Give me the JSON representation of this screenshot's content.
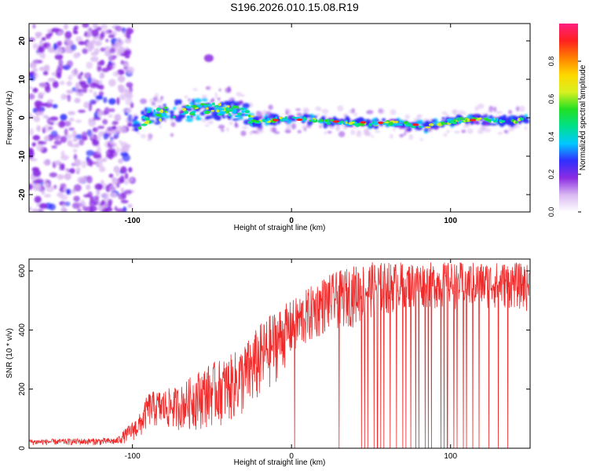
{
  "title": "S196.2026.010.15.08.R19",
  "chart_data": [
    {
      "type": "heatmap",
      "xlabel": "Height of straight line (km)",
      "ylabel": "Frequency (Hz)",
      "xlim": [
        -165,
        150
      ],
      "ylim": [
        -24.5,
        24.5
      ],
      "xticks": [
        -100,
        0,
        100
      ],
      "yticks": [
        -20,
        -10,
        0,
        10,
        20
      ],
      "colorbar": {
        "label": "Normalized spectral amplitude",
        "range": [
          0,
          1
        ],
        "ticks": [
          "0.0",
          "0.2",
          "0.4",
          "0.6",
          "0.8"
        ],
        "tick_values": [
          0,
          0.2,
          0.4,
          0.6,
          0.8
        ],
        "colors": [
          "#ffffff",
          "#d9b8f2",
          "#8a2be2",
          "#3030ff",
          "#00c8ff",
          "#00e08a",
          "#22e022",
          "#d8f020",
          "#ffd800",
          "#ff8000",
          "#ff2020",
          "#ff2080"
        ]
      },
      "ridge": {
        "x": [
          -100,
          -95,
          -90,
          -85,
          -80,
          -75,
          -70,
          -65,
          -60,
          -55,
          -50,
          -45,
          -40,
          -35,
          -30,
          -25,
          -20,
          -10,
          0,
          10,
          20,
          30,
          40,
          50,
          60,
          70,
          75,
          80,
          85,
          90,
          100,
          110,
          120,
          130,
          140,
          148
        ],
        "freq": [
          -3,
          -1,
          0,
          0.5,
          1,
          1.5,
          2,
          1.5,
          2,
          2.5,
          2,
          2,
          2.5,
          2,
          1.5,
          -1,
          -1,
          -0.5,
          0,
          -0.5,
          -1,
          -1,
          -1.5,
          -1.5,
          -1.5,
          -1.5,
          -2,
          -2,
          -2.5,
          -1.5,
          -1,
          -0.5,
          -0.5,
          -0.8,
          -0.8,
          -0.5
        ]
      },
      "noise_region": {
        "x_from": -165,
        "x_to": -100,
        "freq_from": -24.5,
        "freq_to": 24.5
      },
      "features": [
        {
          "label": "upper blob",
          "x": -52,
          "freq": 15.5
        }
      ]
    },
    {
      "type": "line",
      "xlabel": "Height of straight line (km)",
      "ylabel": "SNR (10 * v/v)",
      "xlim": [
        -165,
        150
      ],
      "ylim": [
        0,
        640
      ],
      "xticks": [
        -100,
        0,
        100
      ],
      "yticks": [
        0,
        200,
        400,
        600
      ],
      "color": "#ee2a2a",
      "envelope": {
        "x": [
          -165,
          -110,
          -95,
          -90,
          -80,
          -70,
          -60,
          -50,
          -40,
          -30,
          -20,
          -10,
          0,
          10,
          20,
          30,
          40,
          50,
          60,
          70,
          80,
          90,
          100,
          110,
          120,
          130,
          140,
          150
        ],
        "low": [
          10,
          10,
          30,
          70,
          60,
          60,
          60,
          70,
          80,
          100,
          150,
          220,
          300,
          340,
          380,
          400,
          410,
          440,
          450,
          460,
          470,
          470,
          470,
          470,
          470,
          470,
          470,
          460
        ],
        "high": [
          30,
          35,
          120,
          190,
          200,
          210,
          260,
          290,
          310,
          350,
          420,
          470,
          500,
          540,
          580,
          600,
          620,
          630,
          630,
          630,
          630,
          630,
          630,
          630,
          630,
          630,
          630,
          620
        ]
      },
      "dropouts_x": [
        2,
        30,
        44,
        46,
        48,
        52,
        54,
        56,
        58,
        62,
        66,
        70,
        72,
        75,
        78,
        80,
        84,
        86,
        88,
        94,
        96,
        98,
        102,
        104,
        108,
        110,
        114,
        118,
        124,
        130,
        136
      ]
    }
  ]
}
